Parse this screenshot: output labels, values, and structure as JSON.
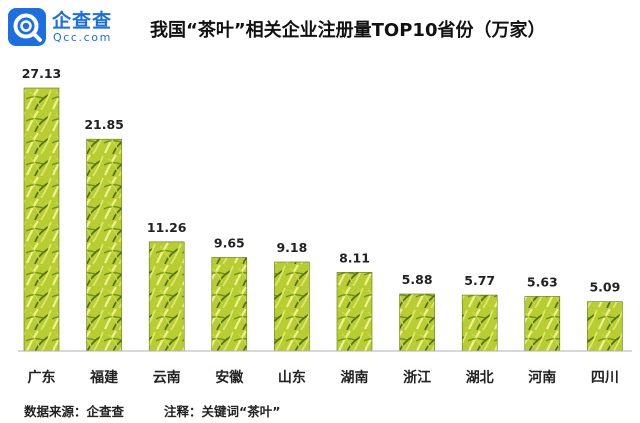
{
  "logo": {
    "name_cn": "企查查",
    "name_en": "Qcc.com"
  },
  "title": "我国“茶叶”相关企业注册量TOP10省份（万家）",
  "footer": {
    "source": "数据来源：企查查",
    "note": "注释：关键词“茶叶”"
  },
  "colors": {
    "brand": "#1b6fe0",
    "bar_light": "#d9e86a",
    "bar_dark": "#5f7a10",
    "axis": "#b0b0b0"
  },
  "chart_data": {
    "type": "bar",
    "categories": [
      "广东",
      "福建",
      "云南",
      "安徽",
      "山东",
      "湖南",
      "浙江",
      "湖北",
      "河南",
      "四川"
    ],
    "values": [
      27.13,
      21.85,
      11.26,
      9.65,
      9.18,
      8.11,
      5.88,
      5.77,
      5.63,
      5.09
    ],
    "data_labels": [
      "27.13",
      "21.85",
      "11.26",
      "9.65",
      "9.18",
      "8.11",
      "5.88",
      "5.77",
      "5.63",
      "5.09"
    ],
    "ylim": [
      0,
      27.13
    ],
    "grid": false,
    "legend": "none"
  }
}
